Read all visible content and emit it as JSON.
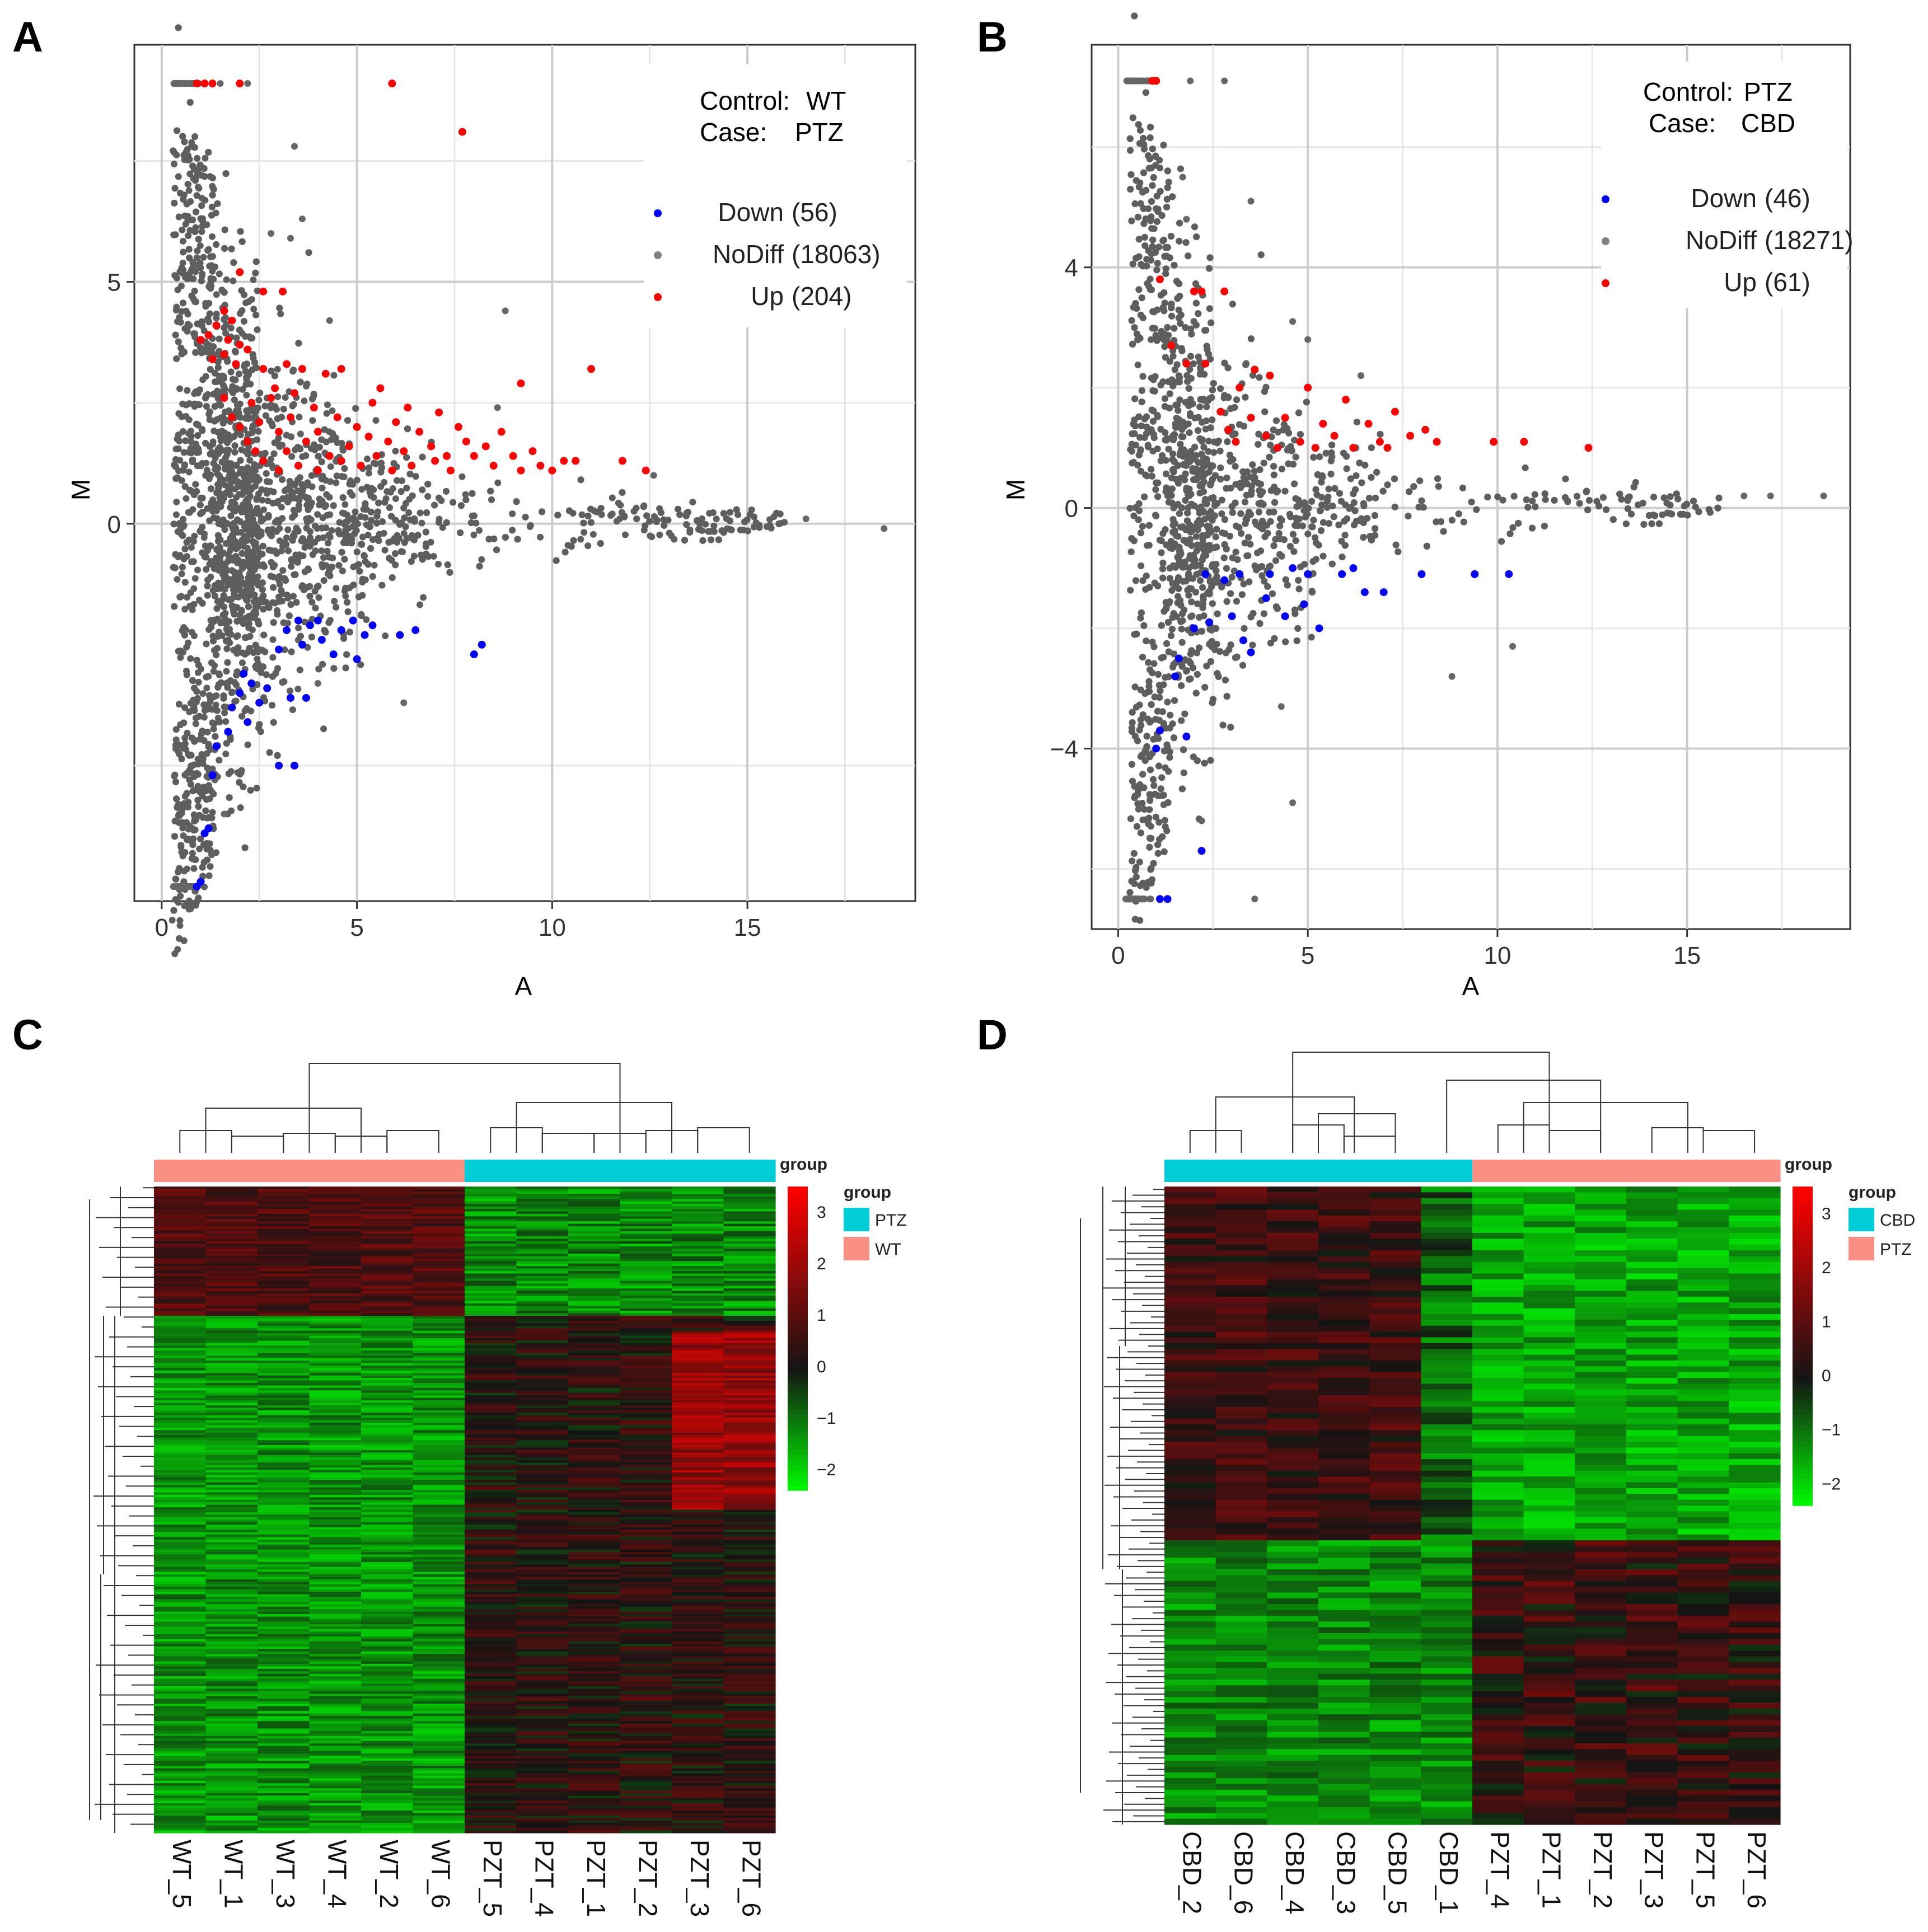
{
  "panels": {
    "A": "A",
    "B": "B",
    "C": "C",
    "D": "D"
  },
  "chart_data": [
    {
      "type": "scatter",
      "id": "A",
      "title": "",
      "xlabel": "A",
      "ylabel": "M",
      "xlim": [
        -0.7,
        19.3
      ],
      "ylim": [
        -7.8,
        9.9
      ],
      "xticks": [
        0,
        5,
        10,
        15
      ],
      "yticks": [
        0,
        5
      ],
      "grid": true,
      "annotation": {
        "control_label": "Control:",
        "control_value": "WT",
        "case_label": "Case:",
        "case_value": "PTZ"
      },
      "legend": [
        {
          "label": "Down",
          "count": "(56)",
          "color": "#0000ff"
        },
        {
          "label": "NoDiff",
          "count": "(18063)",
          "color": "#808080"
        },
        {
          "label": "Up",
          "count": "(204)",
          "color": "#ff0000"
        }
      ],
      "series": [
        {
          "name": "Up",
          "color": "#ff0000",
          "points": [
            [
              0.9,
              9.1
            ],
            [
              1.1,
              9.1
            ],
            [
              1.3,
              9.1
            ],
            [
              2.0,
              9.1
            ],
            [
              5.9,
              9.1
            ],
            [
              7.7,
              8.1
            ],
            [
              2.0,
              5.2
            ],
            [
              2.6,
              4.8
            ],
            [
              3.1,
              4.8
            ],
            [
              1.6,
              4.4
            ],
            [
              1.8,
              4.2
            ],
            [
              1.4,
              4.1
            ],
            [
              1.2,
              3.9
            ],
            [
              1.0,
              3.8
            ],
            [
              1.7,
              3.8
            ],
            [
              2.0,
              3.7
            ],
            [
              2.2,
              3.6
            ],
            [
              1.6,
              3.5
            ],
            [
              1.3,
              3.4
            ],
            [
              1.9,
              3.3
            ],
            [
              2.6,
              3.2
            ],
            [
              3.2,
              3.3
            ],
            [
              3.6,
              3.2
            ],
            [
              4.2,
              3.1
            ],
            [
              4.6,
              3.2
            ],
            [
              11.0,
              3.2
            ],
            [
              5.6,
              2.8
            ],
            [
              9.2,
              2.9
            ],
            [
              2.9,
              2.8
            ],
            [
              3.4,
              2.7
            ],
            [
              1.6,
              2.6
            ],
            [
              2.3,
              2.5
            ],
            [
              2.8,
              2.6
            ],
            [
              3.9,
              2.4
            ],
            [
              5.4,
              2.5
            ],
            [
              6.3,
              2.4
            ],
            [
              7.1,
              2.3
            ],
            [
              1.8,
              2.2
            ],
            [
              2.5,
              2.1
            ],
            [
              3.3,
              2.2
            ],
            [
              4.5,
              2.2
            ],
            [
              5.0,
              2.0
            ],
            [
              6.0,
              2.1
            ],
            [
              7.6,
              2.0
            ],
            [
              8.7,
              1.9
            ],
            [
              2.0,
              2.0
            ],
            [
              3.0,
              1.9
            ],
            [
              4.0,
              1.9
            ],
            [
              5.3,
              1.8
            ],
            [
              6.6,
              1.9
            ],
            [
              7.8,
              1.7
            ],
            [
              2.2,
              1.7
            ],
            [
              3.7,
              1.7
            ],
            [
              4.8,
              1.6
            ],
            [
              5.8,
              1.7
            ],
            [
              6.9,
              1.6
            ],
            [
              8.3,
              1.6
            ],
            [
              9.5,
              1.5
            ],
            [
              2.4,
              1.5
            ],
            [
              3.2,
              1.5
            ],
            [
              4.3,
              1.4
            ],
            [
              5.5,
              1.4
            ],
            [
              6.2,
              1.5
            ],
            [
              7.3,
              1.4
            ],
            [
              8.0,
              1.4
            ],
            [
              9.0,
              1.4
            ],
            [
              10.3,
              1.3
            ],
            [
              2.6,
              1.3
            ],
            [
              3.5,
              1.2
            ],
            [
              4.6,
              1.3
            ],
            [
              5.1,
              1.2
            ],
            [
              6.4,
              1.2
            ],
            [
              7.0,
              1.3
            ],
            [
              8.5,
              1.2
            ],
            [
              9.7,
              1.2
            ],
            [
              10.6,
              1.3
            ],
            [
              11.8,
              1.3
            ],
            [
              12.4,
              1.1
            ],
            [
              3.0,
              1.1
            ],
            [
              4.0,
              1.1
            ],
            [
              5.9,
              1.1
            ],
            [
              7.4,
              1.1
            ],
            [
              9.2,
              1.1
            ],
            [
              10.0,
              1.1
            ]
          ]
        },
        {
          "name": "Down",
          "color": "#0000ff",
          "points": [
            [
              0.9,
              -7.5
            ],
            [
              1.0,
              -7.4
            ],
            [
              1.1,
              -6.4
            ],
            [
              1.2,
              -6.3
            ],
            [
              1.3,
              -5.2
            ],
            [
              1.4,
              -4.6
            ],
            [
              1.7,
              -4.3
            ],
            [
              2.2,
              -4.1
            ],
            [
              3.0,
              -5.0
            ],
            [
              3.4,
              -5.0
            ],
            [
              1.8,
              -3.8
            ],
            [
              2.5,
              -3.7
            ],
            [
              3.3,
              -3.6
            ],
            [
              3.7,
              -3.6
            ],
            [
              2.0,
              -3.5
            ],
            [
              2.3,
              -3.3
            ],
            [
              2.7,
              -3.4
            ],
            [
              2.1,
              -3.1
            ],
            [
              4.4,
              -2.7
            ],
            [
              5.0,
              -2.8
            ],
            [
              8.0,
              -2.7
            ],
            [
              8.2,
              -2.5
            ],
            [
              3.0,
              -2.6
            ],
            [
              3.6,
              -2.5
            ],
            [
              4.1,
              -2.4
            ],
            [
              5.2,
              -2.3
            ],
            [
              6.1,
              -2.3
            ],
            [
              6.5,
              -2.2
            ],
            [
              3.2,
              -2.2
            ],
            [
              3.8,
              -2.1
            ],
            [
              4.6,
              -2.2
            ],
            [
              5.4,
              -2.1
            ],
            [
              3.5,
              -2.0
            ],
            [
              4.0,
              -2.0
            ],
            [
              4.9,
              -2.0
            ]
          ]
        }
      ],
      "nodiff_shape": "dense gray cloud centered at M=0, widening toward low A (±4 near A=1, narrowing to ±0.3 near A=15); extreme values at M≈9.1 and M≈-7.5 for A<2.3"
    },
    {
      "type": "scatter",
      "id": "B",
      "title": "",
      "xlabel": "A",
      "ylabel": "M",
      "xlim": [
        -0.7,
        19.3
      ],
      "ylim": [
        -7.0,
        7.7
      ],
      "xticks": [
        0,
        5,
        10,
        15
      ],
      "yticks": [
        -4,
        0,
        4
      ],
      "grid": true,
      "annotation": {
        "control_label": "Control:",
        "control_value": "PTZ",
        "case_label": "Case:",
        "case_value": "CBD"
      },
      "legend": [
        {
          "label": "Down",
          "count": "(46)",
          "color": "#0000ff"
        },
        {
          "label": "NoDiff",
          "count": "(18271)",
          "color": "#808080"
        },
        {
          "label": "Up",
          "count": "(61)",
          "color": "#ff0000"
        }
      ],
      "series": [
        {
          "name": "Up",
          "color": "#ff0000",
          "points": [
            [
              0.9,
              7.1
            ],
            [
              1.0,
              7.1
            ],
            [
              1.1,
              3.8
            ],
            [
              2.0,
              3.6
            ],
            [
              2.2,
              3.6
            ],
            [
              2.8,
              3.6
            ],
            [
              1.4,
              2.7
            ],
            [
              1.8,
              2.4
            ],
            [
              2.3,
              2.4
            ],
            [
              3.6,
              2.3
            ],
            [
              4.0,
              2.2
            ],
            [
              3.2,
              2.0
            ],
            [
              5.0,
              2.0
            ],
            [
              6.0,
              1.8
            ],
            [
              7.3,
              1.6
            ],
            [
              2.7,
              1.6
            ],
            [
              3.5,
              1.5
            ],
            [
              4.4,
              1.5
            ],
            [
              5.4,
              1.4
            ],
            [
              6.6,
              1.4
            ],
            [
              8.1,
              1.3
            ],
            [
              2.9,
              1.3
            ],
            [
              3.9,
              1.2
            ],
            [
              4.8,
              1.1
            ],
            [
              5.7,
              1.2
            ],
            [
              6.9,
              1.1
            ],
            [
              7.7,
              1.2
            ],
            [
              8.4,
              1.1
            ],
            [
              9.9,
              1.1
            ],
            [
              10.7,
              1.1
            ],
            [
              12.4,
              1.0
            ],
            [
              3.1,
              1.1
            ],
            [
              4.2,
              1.0
            ],
            [
              5.2,
              1.0
            ],
            [
              6.2,
              1.0
            ],
            [
              7.1,
              1.0
            ]
          ]
        },
        {
          "name": "Down",
          "color": "#0000ff",
          "points": [
            [
              1.3,
              -6.5
            ],
            [
              1.1,
              -6.5
            ],
            [
              2.2,
              -5.7
            ],
            [
              1.0,
              -4.0
            ],
            [
              1.1,
              -3.7
            ],
            [
              1.8,
              -3.8
            ],
            [
              1.5,
              -2.8
            ],
            [
              1.6,
              -2.5
            ],
            [
              2.0,
              -2.0
            ],
            [
              2.4,
              -1.9
            ],
            [
              3.0,
              -1.8
            ],
            [
              3.3,
              -2.2
            ],
            [
              3.5,
              -2.4
            ],
            [
              4.4,
              -1.8
            ],
            [
              4.9,
              -1.6
            ],
            [
              5.3,
              -2.0
            ],
            [
              3.9,
              -1.5
            ],
            [
              2.8,
              -1.2
            ],
            [
              4.0,
              -1.1
            ],
            [
              5.0,
              -1.1
            ],
            [
              5.9,
              -1.1
            ],
            [
              6.5,
              -1.4
            ],
            [
              7.0,
              -1.4
            ],
            [
              8.0,
              -1.1
            ],
            [
              9.4,
              -1.1
            ],
            [
              10.3,
              -1.1
            ],
            [
              2.3,
              -1.1
            ],
            [
              3.2,
              -1.1
            ],
            [
              4.6,
              -1.0
            ],
            [
              6.2,
              -1.0
            ]
          ]
        }
      ],
      "nodiff_shape": "dense gray cloud centered at M=0, widening toward low A (±3.5 near A=1, narrowing to ±0.2 near A=15); extreme values at M≈7.1 and M≈-6.5 for A<1.9"
    },
    {
      "type": "heatmap",
      "id": "C",
      "title": "",
      "columns": [
        "WT_5",
        "WT_1",
        "WT_3",
        "WT_4",
        "WT_2",
        "WT_6",
        "PZT_5",
        "PZT_4",
        "PZT_1",
        "PZT_2",
        "PZT_3",
        "PZT_6"
      ],
      "column_groups": [
        "WT",
        "WT",
        "WT",
        "WT",
        "WT",
        "WT",
        "PTZ",
        "PTZ",
        "PTZ",
        "PTZ",
        "PTZ",
        "PTZ"
      ],
      "row_count": 260,
      "colorbar_title": "group",
      "colorbar_ticks": [
        3,
        2,
        1,
        0,
        -1,
        -2
      ],
      "colorbar_tick_labels": [
        "3",
        "2",
        "1",
        "0",
        "−1",
        "−2"
      ],
      "colorbar_range": [
        -2.4,
        3.5
      ],
      "legend_title": "group",
      "legend": [
        {
          "label": "PTZ",
          "color": "#00ced6"
        },
        {
          "label": "WT",
          "color": "#fa8f84"
        }
      ],
      "pattern": "top ~20% rows: WT red, PTZ green; remaining rows: WT green, PTZ dark-to-red (PZT_3/PZT_6 strongest red in upper-middle block)"
    },
    {
      "type": "heatmap",
      "id": "D",
      "title": "",
      "columns": [
        "CBD_2",
        "CBD_6",
        "CBD_4",
        "CBD_3",
        "CBD_5",
        "CBD_1",
        "PZT_4",
        "PZT_1",
        "PZT_2",
        "PZT_3",
        "PZT_5",
        "PZT_6"
      ],
      "column_groups": [
        "CBD",
        "CBD",
        "CBD",
        "CBD",
        "CBD",
        "CBD",
        "PTZ",
        "PTZ",
        "PTZ",
        "PTZ",
        "PTZ",
        "PTZ"
      ],
      "row_count": 110,
      "colorbar_title": "group",
      "colorbar_ticks": [
        3,
        2,
        1,
        0,
        -1,
        -2
      ],
      "colorbar_tick_labels": [
        "3",
        "2",
        "1",
        "0",
        "−1",
        "−2"
      ],
      "colorbar_range": [
        -2.4,
        3.5
      ],
      "legend_title": "group",
      "legend": [
        {
          "label": "CBD",
          "color": "#00ced6"
        },
        {
          "label": "PTZ",
          "color": "#fa8f84"
        }
      ],
      "pattern": "upper ~55% rows: CBD dark-red, PTZ green; lower ~45% rows: CBD green, PTZ dark-to-red"
    }
  ]
}
